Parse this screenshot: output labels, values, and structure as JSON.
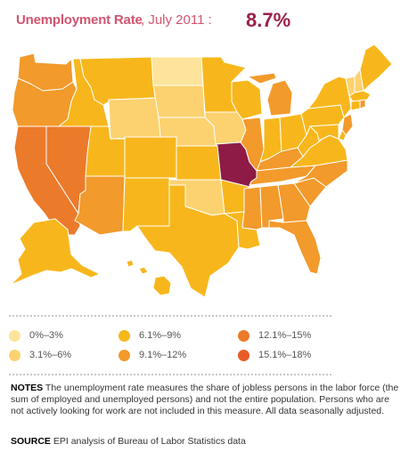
{
  "header": {
    "title": "Unemployment Rate",
    "date": ", July 2011 :",
    "value": "8.7%"
  },
  "legend": {
    "bins": [
      {
        "label": "0%–3%",
        "color": "#fde49a"
      },
      {
        "label": "3.1%–6%",
        "color": "#fcd270"
      },
      {
        "label": "6.1%–9%",
        "color": "#f7b71c"
      },
      {
        "label": "9.1%–12%",
        "color": "#f29a2b"
      },
      {
        "label": "12.1%–15%",
        "color": "#ec7a2b"
      },
      {
        "label": "15.1%–18%",
        "color": "#e95b26"
      }
    ]
  },
  "map": {
    "highlight": {
      "state": "Missouri",
      "color": "#8e1b45"
    },
    "states": [
      {
        "id": "WA",
        "bin": 3
      },
      {
        "id": "OR",
        "bin": 3
      },
      {
        "id": "CA",
        "bin": 4
      },
      {
        "id": "NV",
        "bin": 4
      },
      {
        "id": "ID",
        "bin": 2
      },
      {
        "id": "MT",
        "bin": 2
      },
      {
        "id": "WY",
        "bin": 1
      },
      {
        "id": "UT",
        "bin": 2
      },
      {
        "id": "AZ",
        "bin": 3
      },
      {
        "id": "CO",
        "bin": 2
      },
      {
        "id": "NM",
        "bin": 2
      },
      {
        "id": "ND",
        "bin": 0
      },
      {
        "id": "SD",
        "bin": 1
      },
      {
        "id": "NE",
        "bin": 1
      },
      {
        "id": "KS",
        "bin": 2
      },
      {
        "id": "OK",
        "bin": 1
      },
      {
        "id": "TX",
        "bin": 2
      },
      {
        "id": "MN",
        "bin": 2
      },
      {
        "id": "IA",
        "bin": 1
      },
      {
        "id": "MO",
        "bin": -1
      },
      {
        "id": "AR",
        "bin": 2
      },
      {
        "id": "LA",
        "bin": 2
      },
      {
        "id": "WI",
        "bin": 2
      },
      {
        "id": "IL",
        "bin": 3
      },
      {
        "id": "MI",
        "bin": 3
      },
      {
        "id": "IN",
        "bin": 2
      },
      {
        "id": "OH",
        "bin": 2
      },
      {
        "id": "KY",
        "bin": 3
      },
      {
        "id": "TN",
        "bin": 3
      },
      {
        "id": "MS",
        "bin": 3
      },
      {
        "id": "AL",
        "bin": 3
      },
      {
        "id": "GA",
        "bin": 3
      },
      {
        "id": "FL",
        "bin": 3
      },
      {
        "id": "SC",
        "bin": 3
      },
      {
        "id": "NC",
        "bin": 3
      },
      {
        "id": "VA",
        "bin": 2
      },
      {
        "id": "WV",
        "bin": 2
      },
      {
        "id": "PA",
        "bin": 2
      },
      {
        "id": "NY",
        "bin": 2
      },
      {
        "id": "VT",
        "bin": 1
      },
      {
        "id": "NH",
        "bin": 1
      },
      {
        "id": "ME",
        "bin": 2
      },
      {
        "id": "MA",
        "bin": 2
      },
      {
        "id": "CT",
        "bin": 2
      },
      {
        "id": "RI",
        "bin": 3
      },
      {
        "id": "NJ",
        "bin": 3
      },
      {
        "id": "DE",
        "bin": 2
      },
      {
        "id": "MD",
        "bin": 2
      },
      {
        "id": "AK",
        "bin": 2
      },
      {
        "id": "HI",
        "bin": 2
      }
    ]
  },
  "notes": {
    "label": "NOTES",
    "text": " The unemployment rate measures the share of jobless persons in the labor force (the sum of employed and unemployed persons) and not the entire population. Persons who are not actively looking for work are not included in this measure. All data seasonally adjusted."
  },
  "source": {
    "label": "SOURCE",
    "text": " EPI analysis of Bureau of Labor Statistics data"
  }
}
